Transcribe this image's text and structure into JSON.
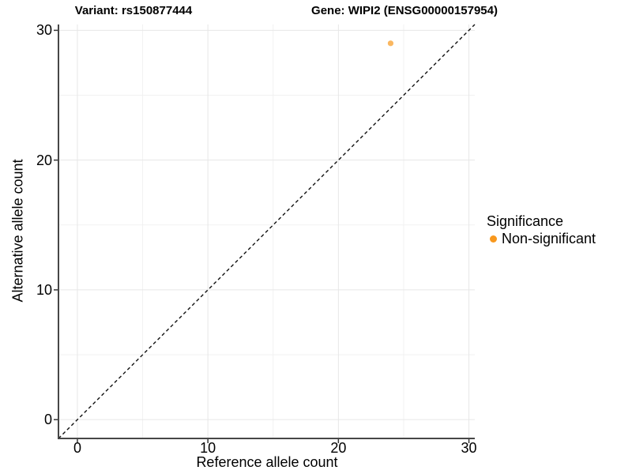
{
  "chart_data": {
    "type": "scatter",
    "title_left": "Variant: rs150877444",
    "title_right": "Gene: WIPI2 (ENSG00000157954)",
    "xlabel": "Reference allele count",
    "ylabel": "Alternative allele count",
    "xlim": [
      -1.45,
      30.45
    ],
    "ylim": [
      -1.45,
      30.45
    ],
    "x_major_ticks": [
      0,
      10,
      20,
      30
    ],
    "x_minor_ticks": [
      5,
      15,
      25
    ],
    "y_major_ticks": [
      0,
      10,
      20,
      30
    ],
    "y_minor_ticks": [
      5,
      15,
      25
    ],
    "grid": "major+minor",
    "legend": {
      "title": "Significance",
      "position": "right"
    },
    "series": [
      {
        "name": "Non-significant",
        "color": "#F8981D",
        "point_opacity": 0.7,
        "point_radius": 3.6,
        "points": [
          [
            24,
            29
          ]
        ]
      }
    ],
    "reference_line": {
      "type": "identity",
      "slope": 1,
      "intercept": 0,
      "style": "dashed",
      "color": "#111111"
    },
    "colors": {
      "background": "#ffffff",
      "grid_major": "#e7e7e7",
      "grid_minor": "#f1f1f1",
      "axis_line": "#474747",
      "tick_mark": "#333333",
      "text": "#000000"
    }
  }
}
